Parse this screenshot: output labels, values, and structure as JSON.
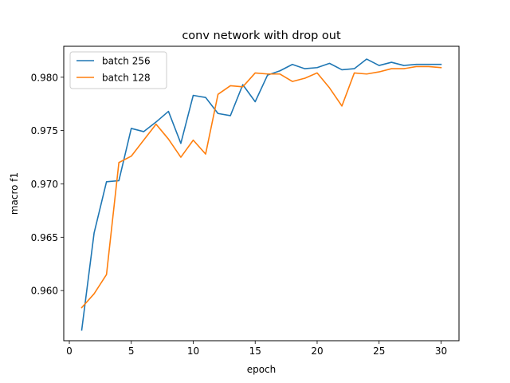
{
  "chart_data": {
    "type": "line",
    "title": "conv network with drop out",
    "xlabel": "epoch",
    "ylabel": "macro f1",
    "xlim": [
      -0.45,
      31.45
    ],
    "ylim": [
      0.9553,
      0.9829
    ],
    "xticks": [
      0,
      5,
      10,
      15,
      20,
      25,
      30
    ],
    "yticks": [
      0.96,
      0.965,
      0.97,
      0.975,
      0.98
    ],
    "xtick_labels": [
      "0",
      "5",
      "10",
      "15",
      "20",
      "25",
      "30"
    ],
    "ytick_labels": [
      "0.960",
      "0.965",
      "0.970",
      "0.975",
      "0.980"
    ],
    "grid": false,
    "legend_position": "top-left",
    "x": [
      1,
      2,
      3,
      4,
      5,
      6,
      7,
      8,
      9,
      10,
      11,
      12,
      13,
      14,
      15,
      16,
      17,
      18,
      19,
      20,
      21,
      22,
      23,
      24,
      25,
      26,
      27,
      28,
      29,
      30
    ],
    "series": [
      {
        "name": "batch 256",
        "color": "#1f77b4",
        "values": [
          0.9563,
          0.9654,
          0.9702,
          0.9703,
          0.9752,
          0.9749,
          0.9758,
          0.9768,
          0.9738,
          0.9783,
          0.9781,
          0.9766,
          0.9764,
          0.9793,
          0.9777,
          0.9802,
          0.9806,
          0.9812,
          0.9808,
          0.9809,
          0.9813,
          0.9807,
          0.9808,
          0.9817,
          0.9811,
          0.9814,
          0.9811,
          0.9812,
          0.9812,
          0.9812
        ]
      },
      {
        "name": "batch 128",
        "color": "#ff7f0e",
        "values": [
          0.9584,
          0.9597,
          0.9615,
          0.972,
          0.9726,
          0.9741,
          0.9756,
          0.9742,
          0.9725,
          0.9741,
          0.9728,
          0.9784,
          0.9792,
          0.9791,
          0.9804,
          0.9803,
          0.9803,
          0.9796,
          0.9799,
          0.9804,
          0.979,
          0.9773,
          0.9804,
          0.9803,
          0.9805,
          0.9808,
          0.9808,
          0.981,
          0.981,
          0.9809
        ]
      }
    ]
  }
}
